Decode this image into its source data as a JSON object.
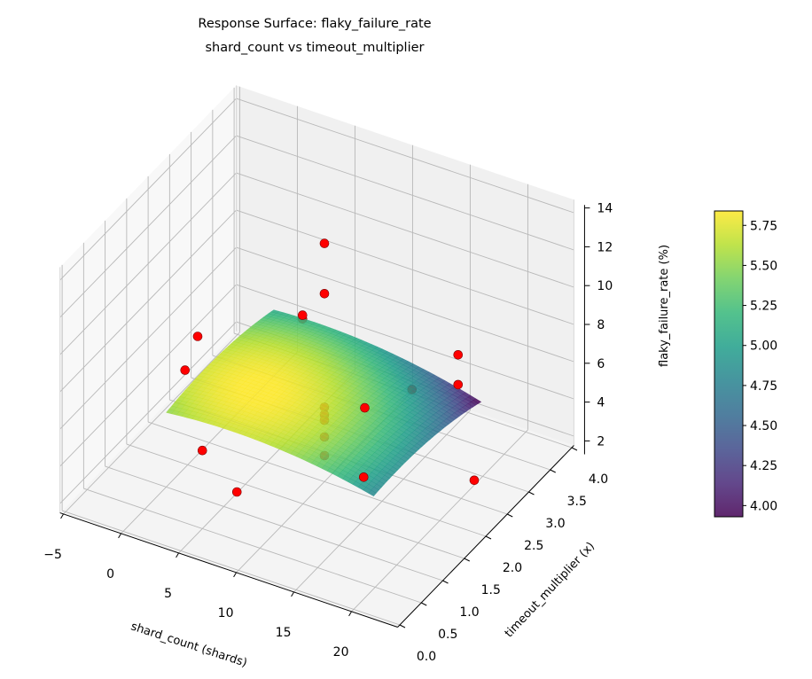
{
  "chart_data": {
    "type": "surface3d",
    "title": "Response Surface: flaky_failure_rate",
    "subtitle": "shard_count vs timeout_multiplier",
    "xlabel": "shard_count (shards)",
    "ylabel": "timeout_multiplier (x)",
    "zlabel": "flaky_failure_rate (%)",
    "xlim": [
      -5.3,
      24
    ],
    "ylim": [
      -0.05,
      4.05
    ],
    "zlim": [
      1.5,
      14.7
    ],
    "xticks": [
      -5,
      0,
      5,
      10,
      15,
      20
    ],
    "yticks": [
      "0.0",
      "0.5",
      "1.0",
      "1.5",
      "2.0",
      "2.5",
      "3.0",
      "3.5",
      "4.0"
    ],
    "zticks": [
      2,
      4,
      6,
      8,
      10,
      12,
      14
    ],
    "grid": true,
    "colormap": "viridis",
    "surface": {
      "x_range": [
        0,
        18
      ],
      "y_range": [
        1.0,
        3.5
      ],
      "model": "z = 5.85 - 0.006*(x-5)^2 - 0.25*(y-1.8)^2 - 0.01*(x-5)*(y-1.8)"
    },
    "points": [
      {
        "x": 10,
        "y": 2,
        "z": 14.3
      },
      {
        "x": 10,
        "y": 2,
        "z": 11.6
      },
      {
        "x": 2.5,
        "y": 3.5,
        "z": 5.3
      },
      {
        "x": 2.5,
        "y": 3.5,
        "z": 5.1
      },
      {
        "x": -1,
        "y": 2,
        "z": 7.0
      },
      {
        "x": 3.5,
        "y": 0.5,
        "z": 9.7
      },
      {
        "x": 16,
        "y": 3.5,
        "z": 6.0
      },
      {
        "x": 16,
        "y": 3.5,
        "z": 4.4
      },
      {
        "x": 13.5,
        "y": 2,
        "z": 6.2
      },
      {
        "x": 12,
        "y": 3.5,
        "z": 3.3
      },
      {
        "x": 5,
        "y": 0.5,
        "z": 5.7
      },
      {
        "x": 8,
        "y": 0.5,
        "z": 4.1
      },
      {
        "x": 23,
        "y": 2,
        "z": 4.3
      },
      {
        "x": 19,
        "y": 0.5,
        "z": 7.2
      },
      {
        "x": 10,
        "y": 2,
        "z": 5.5
      },
      {
        "x": 10,
        "y": 2,
        "z": 5.1
      },
      {
        "x": 10,
        "y": 2,
        "z": 4.8
      },
      {
        "x": 10,
        "y": 2,
        "z": 3.9
      },
      {
        "x": 10,
        "y": 2,
        "z": 2.9
      }
    ],
    "point_color": "#ff0000",
    "colorbar": {
      "range": [
        3.93,
        5.84
      ],
      "ticks": [
        "4.00",
        "4.25",
        "4.50",
        "4.75",
        "5.00",
        "5.25",
        "5.50",
        "5.75"
      ]
    }
  }
}
